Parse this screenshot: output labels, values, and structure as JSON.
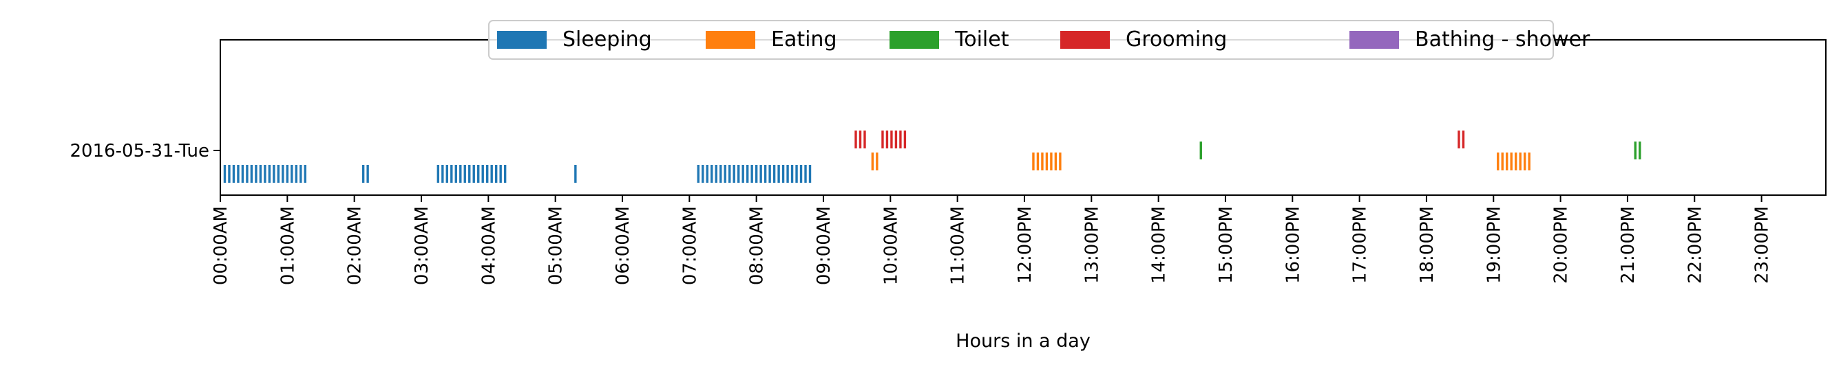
{
  "chart_data": {
    "type": "event-timeline",
    "title": "",
    "xlabel": "Hours in a day",
    "ylabel": "",
    "x_range_hours": [
      0,
      24
    ],
    "x_ticks": [
      "00:00AM",
      "01:00AM",
      "02:00AM",
      "03:00AM",
      "04:00AM",
      "05:00AM",
      "06:00AM",
      "07:00AM",
      "08:00AM",
      "09:00AM",
      "10:00AM",
      "11:00AM",
      "12:00PM",
      "13:00PM",
      "14:00PM",
      "15:00PM",
      "16:00PM",
      "17:00PM",
      "18:00PM",
      "19:00PM",
      "20:00PM",
      "21:00PM",
      "22:00PM",
      "23:00PM"
    ],
    "y_categories": [
      "2016-05-31-Tue"
    ],
    "legend_position": "top-center",
    "grid": false,
    "series": [
      {
        "name": "Sleeping",
        "color": "#1f77b4",
        "level": 0,
        "times": [
          "00:04",
          "00:08",
          "00:12",
          "00:16",
          "00:20",
          "00:24",
          "00:28",
          "00:32",
          "00:36",
          "00:40",
          "00:44",
          "00:48",
          "00:52",
          "00:56",
          "01:00",
          "01:04",
          "01:08",
          "01:12",
          "01:16",
          "02:08",
          "02:12",
          "03:15",
          "03:19",
          "03:23",
          "03:27",
          "03:31",
          "03:35",
          "03:39",
          "03:43",
          "03:47",
          "03:51",
          "03:55",
          "03:59",
          "04:03",
          "04:07",
          "04:11",
          "04:15",
          "05:18",
          "07:08",
          "07:12",
          "07:16",
          "07:20",
          "07:24",
          "07:28",
          "07:32",
          "07:36",
          "07:40",
          "07:44",
          "07:48",
          "07:52",
          "07:56",
          "08:00",
          "08:04",
          "08:08",
          "08:12",
          "08:16",
          "08:20",
          "08:24",
          "08:28",
          "08:32",
          "08:36",
          "08:40",
          "08:44",
          "08:48"
        ]
      },
      {
        "name": "Eating",
        "color": "#ff7f0e",
        "level": 1,
        "times": [
          "09:44",
          "09:48",
          "12:08",
          "12:12",
          "12:16",
          "12:20",
          "12:24",
          "12:28",
          "12:32",
          "19:04",
          "19:08",
          "19:12",
          "19:16",
          "19:20",
          "19:24",
          "19:28",
          "19:32"
        ]
      },
      {
        "name": "Toilet",
        "color": "#2ca02c",
        "level": 2,
        "times": [
          "14:38",
          "21:07",
          "21:11"
        ]
      },
      {
        "name": "Grooming",
        "color": "#d62728",
        "level": 3,
        "times": [
          "09:29",
          "09:33",
          "09:37",
          "09:53",
          "09:57",
          "10:01",
          "10:05",
          "10:09",
          "10:13",
          "18:29",
          "18:33"
        ]
      },
      {
        "name": "Bathing - shower",
        "color": "#9467bd",
        "level": 4,
        "times": []
      }
    ]
  }
}
